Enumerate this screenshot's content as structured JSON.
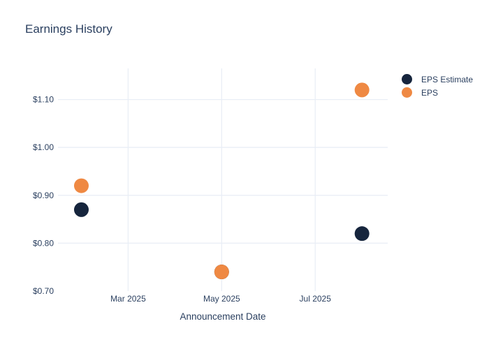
{
  "chart_data": {
    "type": "scatter",
    "title": "Earnings History",
    "xlabel": "Announcement Date",
    "ylabel": "",
    "x_unit": "months since Jan 2025",
    "x_ticks": [
      {
        "label": "Mar 2025",
        "month": 2
      },
      {
        "label": "May 2025",
        "month": 4
      },
      {
        "label": "Jul 2025",
        "month": 6
      }
    ],
    "y_ticks": [
      {
        "label": "$0.70",
        "value": 0.7,
        "grid": false
      },
      {
        "label": "$0.80",
        "value": 0.8,
        "grid": true
      },
      {
        "label": "$0.90",
        "value": 0.9,
        "grid": true
      },
      {
        "label": "$1.00",
        "value": 1.0,
        "grid": true
      },
      {
        "label": "$1.10",
        "value": 1.1,
        "grid": true
      }
    ],
    "xlim_months": [
      0.5,
      7.55
    ],
    "ylim": [
      0.7,
      1.165
    ],
    "grid": true,
    "legend_position": "top-right",
    "marker_diameter_px": 21,
    "series": [
      {
        "name": "EPS Estimate",
        "color": "#16253D",
        "points": [
          {
            "date": "Feb 2025",
            "month": 1,
            "value": 0.87
          },
          {
            "date": "May 2025",
            "month": 4,
            "value": 0.74
          },
          {
            "date": "Aug 2025",
            "month": 7,
            "value": 0.82
          }
        ]
      },
      {
        "name": "EPS",
        "color": "#EF8943",
        "points": [
          {
            "date": "Feb 2025",
            "month": 1,
            "value": 0.92
          },
          {
            "date": "May 2025",
            "month": 4,
            "value": 0.74
          },
          {
            "date": "Aug 2025",
            "month": 7,
            "value": 1.12
          }
        ]
      }
    ],
    "colors": {
      "grid": "#E9EEF6",
      "tick_text": "#2A3F5F",
      "title_text": "#2A3F5F",
      "background": "#FFFFFF"
    }
  }
}
